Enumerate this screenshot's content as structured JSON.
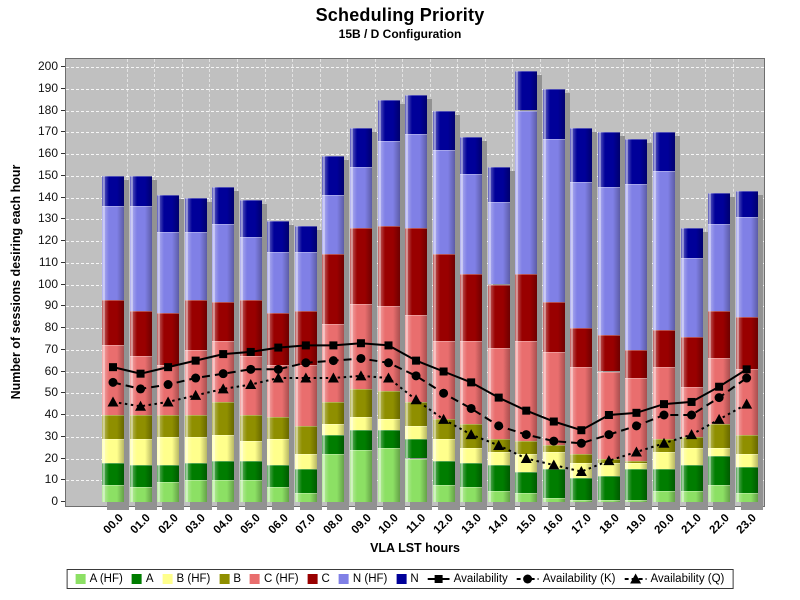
{
  "chart": {
    "title": "Scheduling Priority",
    "subtitle": "15B / D Configuration",
    "xlabel": "VLA LST hours",
    "ylabel": "Number of sessions desiring each hour"
  },
  "chart_data": {
    "type": "bar",
    "stacked": true,
    "title": "Scheduling Priority",
    "subtitle": "15B / D Configuration",
    "xlabel": "VLA LST hours",
    "ylabel": "Number of sessions desiring each hour",
    "ylim": [
      0,
      200
    ],
    "ytick_step": 10,
    "grid": true,
    "legend_position": "bottom",
    "plot_background": "#C0C0C0",
    "categories": [
      "00.0",
      "01.0",
      "02.0",
      "03.0",
      "04.0",
      "05.0",
      "06.0",
      "07.0",
      "08.0",
      "09.0",
      "10.0",
      "11.0",
      "12.0",
      "13.0",
      "14.0",
      "15.0",
      "16.0",
      "17.0",
      "18.0",
      "19.0",
      "20.0",
      "21.0",
      "22.0",
      "23.0"
    ],
    "bar_series": [
      {
        "name": "A (HF)",
        "color": "#8CE064",
        "values": [
          8,
          7,
          9,
          10,
          10,
          10,
          7,
          4,
          22,
          24,
          25,
          20,
          8,
          7,
          5,
          4,
          2,
          1,
          1,
          1,
          5,
          5,
          8,
          4
        ]
      },
      {
        "name": "A",
        "color": "#007D00",
        "values": [
          10,
          10,
          8,
          8,
          9,
          9,
          10,
          11,
          9,
          9,
          8,
          9,
          11,
          11,
          12,
          10,
          13,
          10,
          11,
          14,
          10,
          12,
          13,
          12
        ]
      },
      {
        "name": "B (HF)",
        "color": "#FFFF8C",
        "values": [
          11,
          12,
          13,
          12,
          12,
          9,
          12,
          7,
          5,
          6,
          5,
          6,
          10,
          7,
          6,
          8,
          8,
          7,
          6,
          3,
          8,
          8,
          4,
          6
        ]
      },
      {
        "name": "B",
        "color": "#8F8F00",
        "values": [
          11,
          11,
          10,
          10,
          15,
          12,
          10,
          13,
          10,
          13,
          13,
          11,
          9,
          11,
          6,
          6,
          3,
          4,
          2,
          1,
          6,
          5,
          11,
          9
        ]
      },
      {
        "name": "C (HF)",
        "color": "#E96E6E",
        "values": [
          32,
          27,
          23,
          30,
          28,
          27,
          24,
          28,
          36,
          39,
          39,
          40,
          36,
          38,
          42,
          46,
          43,
          40,
          40,
          38,
          33,
          23,
          30,
          30
        ]
      },
      {
        "name": "C",
        "color": "#990000",
        "values": [
          21,
          21,
          24,
          23,
          18,
          26,
          24,
          25,
          32,
          35,
          37,
          40,
          40,
          31,
          29,
          31,
          23,
          18,
          17,
          13,
          17,
          23,
          22,
          24
        ]
      },
      {
        "name": "N (HF)",
        "color": "#8080E6",
        "values": [
          43,
          48,
          37,
          31,
          36,
          29,
          28,
          27,
          27,
          28,
          39,
          43,
          48,
          46,
          38,
          75,
          75,
          67,
          68,
          76,
          73,
          36,
          40,
          46
        ]
      },
      {
        "name": "N",
        "color": "#000099",
        "values": [
          14,
          14,
          17,
          16,
          17,
          17,
          14,
          12,
          18,
          18,
          19,
          18,
          18,
          17,
          16,
          18,
          23,
          25,
          25,
          21,
          18,
          14,
          14,
          12
        ]
      }
    ],
    "line_series": [
      {
        "name": "Availability",
        "marker": "square",
        "dash": "solid",
        "color": "#000000",
        "values": [
          62,
          59,
          62,
          65,
          68,
          69,
          71,
          72,
          72,
          73,
          72,
          65,
          60,
          55,
          48,
          42,
          37,
          33,
          40,
          41,
          45,
          46,
          53,
          61
        ]
      },
      {
        "name": "Availability (K)",
        "marker": "circle",
        "dash": "dashed",
        "color": "#000000",
        "values": [
          55,
          52,
          54,
          57,
          59,
          61,
          61,
          64,
          65,
          66,
          64,
          58,
          50,
          43,
          35,
          31,
          28,
          27,
          31,
          35,
          40,
          40,
          48,
          57
        ]
      },
      {
        "name": "Availability (Q)",
        "marker": "triangle",
        "dash": "dotted",
        "color": "#000000",
        "values": [
          46,
          44,
          46,
          49,
          52,
          54,
          57,
          57,
          57,
          58,
          57,
          47,
          38,
          31,
          26,
          20,
          17,
          14,
          19,
          23,
          27,
          31,
          38,
          45
        ]
      }
    ]
  }
}
